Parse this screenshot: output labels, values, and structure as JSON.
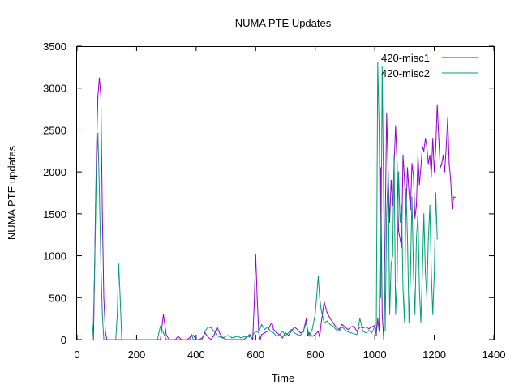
{
  "chart_data": {
    "type": "line",
    "title": "NUMA PTE Updates",
    "xlabel": "Time",
    "ylabel": "NUMA PTE updates",
    "xlim": [
      0,
      1400
    ],
    "ylim": [
      0,
      3500
    ],
    "xticks": [
      0,
      200,
      400,
      600,
      800,
      1000,
      1200,
      1400
    ],
    "yticks": [
      0,
      500,
      1000,
      1500,
      2000,
      2500,
      3000,
      3500
    ],
    "grid": false,
    "legend_position": "top-right",
    "series": [
      {
        "name": "420-misc1",
        "color": "#9400d3",
        "points": [
          [
            55,
            0
          ],
          [
            58,
            600
          ],
          [
            62,
            1600
          ],
          [
            66,
            2350
          ],
          [
            70,
            2900
          ],
          [
            75,
            3120
          ],
          [
            80,
            2900
          ],
          [
            85,
            1500
          ],
          [
            90,
            500
          ],
          [
            95,
            100
          ],
          [
            100,
            0
          ],
          [
            280,
            0
          ],
          [
            290,
            300
          ],
          [
            300,
            50
          ],
          [
            310,
            0
          ],
          [
            330,
            0
          ],
          [
            340,
            40
          ],
          [
            350,
            0
          ],
          [
            370,
            0
          ],
          [
            380,
            30
          ],
          [
            390,
            50
          ],
          [
            400,
            0
          ],
          [
            410,
            0
          ],
          [
            420,
            20
          ],
          [
            430,
            80
          ],
          [
            440,
            30
          ],
          [
            450,
            0
          ],
          [
            460,
            50
          ],
          [
            470,
            150
          ],
          [
            480,
            70
          ],
          [
            490,
            20
          ],
          [
            500,
            0
          ],
          [
            560,
            0
          ],
          [
            570,
            30
          ],
          [
            580,
            60
          ],
          [
            590,
            0
          ],
          [
            595,
            400
          ],
          [
            600,
            1020
          ],
          [
            605,
            500
          ],
          [
            610,
            100
          ],
          [
            615,
            0
          ],
          [
            620,
            60
          ],
          [
            630,
            80
          ],
          [
            640,
            100
          ],
          [
            650,
            180
          ],
          [
            655,
            200
          ],
          [
            660,
            120
          ],
          [
            670,
            80
          ],
          [
            680,
            60
          ],
          [
            690,
            20
          ],
          [
            700,
            80
          ],
          [
            710,
            50
          ],
          [
            720,
            100
          ],
          [
            730,
            150
          ],
          [
            740,
            120
          ],
          [
            750,
            80
          ],
          [
            760,
            90
          ],
          [
            770,
            250
          ],
          [
            775,
            50
          ],
          [
            780,
            80
          ],
          [
            790,
            40
          ],
          [
            800,
            60
          ],
          [
            810,
            100
          ],
          [
            815,
            30
          ],
          [
            820,
            200
          ],
          [
            830,
            450
          ],
          [
            840,
            320
          ],
          [
            850,
            250
          ],
          [
            860,
            200
          ],
          [
            870,
            150
          ],
          [
            880,
            120
          ],
          [
            890,
            180
          ],
          [
            900,
            150
          ],
          [
            910,
            120
          ],
          [
            920,
            150
          ],
          [
            930,
            160
          ],
          [
            940,
            100
          ],
          [
            950,
            150
          ],
          [
            960,
            140
          ],
          [
            970,
            150
          ],
          [
            980,
            130
          ],
          [
            990,
            150
          ],
          [
            1000,
            170
          ],
          [
            1005,
            50
          ],
          [
            1010,
            250
          ],
          [
            1015,
            100
          ],
          [
            1020,
            2050
          ],
          [
            1025,
            300
          ],
          [
            1030,
            0
          ],
          [
            1040,
            2700
          ],
          [
            1045,
            2000
          ],
          [
            1050,
            1400
          ],
          [
            1055,
            1900
          ],
          [
            1060,
            1600
          ],
          [
            1070,
            2550
          ],
          [
            1075,
            2100
          ],
          [
            1080,
            1300
          ],
          [
            1090,
            1100
          ],
          [
            1095,
            2200
          ],
          [
            1100,
            1900
          ],
          [
            1105,
            1500
          ],
          [
            1110,
            2050
          ],
          [
            1115,
            1750
          ],
          [
            1120,
            1550
          ],
          [
            1125,
            2100
          ],
          [
            1130,
            1950
          ],
          [
            1135,
            1450
          ],
          [
            1140,
            1600
          ],
          [
            1145,
            2200
          ],
          [
            1150,
            1850
          ],
          [
            1155,
            2050
          ],
          [
            1160,
            2300
          ],
          [
            1165,
            2250
          ],
          [
            1170,
            2400
          ],
          [
            1175,
            2300
          ],
          [
            1180,
            2100
          ],
          [
            1185,
            2200
          ],
          [
            1190,
            1950
          ],
          [
            1195,
            2400
          ],
          [
            1200,
            2000
          ],
          [
            1205,
            2300
          ],
          [
            1210,
            2800
          ],
          [
            1215,
            2400
          ],
          [
            1220,
            2050
          ],
          [
            1225,
            2100
          ],
          [
            1230,
            2200
          ],
          [
            1235,
            2000
          ],
          [
            1240,
            2300
          ],
          [
            1245,
            2650
          ],
          [
            1250,
            2100
          ],
          [
            1255,
            1900
          ],
          [
            1260,
            1560
          ],
          [
            1265,
            1700
          ],
          [
            1270,
            1700
          ]
        ]
      },
      {
        "name": "420-misc2",
        "color": "#009e73",
        "points": [
          [
            50,
            0
          ],
          [
            55,
            200
          ],
          [
            60,
            1000
          ],
          [
            65,
            2000
          ],
          [
            70,
            2460
          ],
          [
            75,
            1800
          ],
          [
            80,
            900
          ],
          [
            85,
            300
          ],
          [
            90,
            0
          ],
          [
            130,
            0
          ],
          [
            135,
            300
          ],
          [
            140,
            900
          ],
          [
            145,
            500
          ],
          [
            150,
            0
          ],
          [
            270,
            0
          ],
          [
            275,
            80
          ],
          [
            280,
            160
          ],
          [
            290,
            80
          ],
          [
            300,
            0
          ],
          [
            380,
            0
          ],
          [
            385,
            60
          ],
          [
            390,
            0
          ],
          [
            420,
            0
          ],
          [
            430,
            100
          ],
          [
            440,
            150
          ],
          [
            450,
            140
          ],
          [
            460,
            100
          ],
          [
            470,
            50
          ],
          [
            480,
            30
          ],
          [
            490,
            20
          ],
          [
            500,
            40
          ],
          [
            510,
            50
          ],
          [
            520,
            20
          ],
          [
            530,
            30
          ],
          [
            540,
            40
          ],
          [
            550,
            20
          ],
          [
            560,
            30
          ],
          [
            570,
            40
          ],
          [
            580,
            30
          ],
          [
            590,
            50
          ],
          [
            600,
            100
          ],
          [
            610,
            80
          ],
          [
            620,
            180
          ],
          [
            630,
            120
          ],
          [
            640,
            150
          ],
          [
            650,
            100
          ],
          [
            660,
            80
          ],
          [
            670,
            40
          ],
          [
            680,
            60
          ],
          [
            690,
            100
          ],
          [
            700,
            50
          ],
          [
            710,
            80
          ],
          [
            720,
            120
          ],
          [
            730,
            80
          ],
          [
            740,
            60
          ],
          [
            750,
            50
          ],
          [
            760,
            100
          ],
          [
            770,
            200
          ],
          [
            780,
            40
          ],
          [
            790,
            120
          ],
          [
            800,
            300
          ],
          [
            810,
            750
          ],
          [
            815,
            500
          ],
          [
            820,
            350
          ],
          [
            830,
            200
          ],
          [
            840,
            220
          ],
          [
            850,
            180
          ],
          [
            860,
            160
          ],
          [
            870,
            120
          ],
          [
            880,
            100
          ],
          [
            890,
            150
          ],
          [
            900,
            120
          ],
          [
            910,
            90
          ],
          [
            920,
            80
          ],
          [
            930,
            70
          ],
          [
            940,
            60
          ],
          [
            950,
            250
          ],
          [
            960,
            100
          ],
          [
            970,
            80
          ],
          [
            980,
            110
          ],
          [
            990,
            80
          ],
          [
            1000,
            150
          ],
          [
            1005,
            80
          ],
          [
            1010,
            3300
          ],
          [
            1015,
            2500
          ],
          [
            1020,
            500
          ],
          [
            1025,
            3250
          ],
          [
            1030,
            1600
          ],
          [
            1035,
            100
          ],
          [
            1040,
            1500
          ],
          [
            1045,
            2000
          ],
          [
            1050,
            300
          ],
          [
            1055,
            900
          ],
          [
            1060,
            1000
          ],
          [
            1065,
            2200
          ],
          [
            1070,
            300
          ],
          [
            1075,
            700
          ],
          [
            1080,
            2000
          ],
          [
            1085,
            1400
          ],
          [
            1090,
            1600
          ],
          [
            1095,
            600
          ],
          [
            1100,
            200
          ],
          [
            1105,
            1800
          ],
          [
            1110,
            1200
          ],
          [
            1115,
            200
          ],
          [
            1120,
            800
          ],
          [
            1125,
            1700
          ],
          [
            1130,
            800
          ],
          [
            1135,
            300
          ],
          [
            1140,
            1200
          ],
          [
            1145,
            1500
          ],
          [
            1150,
            600
          ],
          [
            1155,
            200
          ],
          [
            1160,
            800
          ],
          [
            1165,
            1500
          ],
          [
            1170,
            800
          ],
          [
            1175,
            500
          ],
          [
            1180,
            1200
          ],
          [
            1185,
            1600
          ],
          [
            1190,
            800
          ],
          [
            1195,
            300
          ],
          [
            1200,
            800
          ],
          [
            1205,
            1750
          ],
          [
            1210,
            1200
          ]
        ]
      }
    ]
  }
}
